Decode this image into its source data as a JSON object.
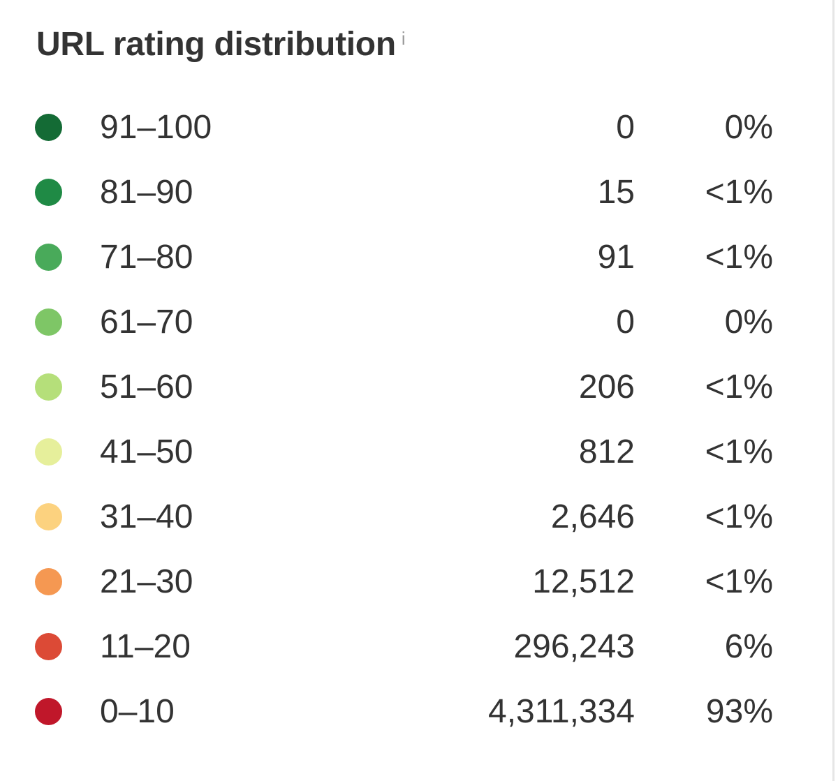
{
  "widget": {
    "title": "URL rating distribution",
    "info_icon": "i",
    "rows": [
      {
        "range": "91–100",
        "count": "0",
        "percent": "0%",
        "color": "#146b35"
      },
      {
        "range": "81–90",
        "count": "15",
        "percent": "<1%",
        "color": "#1f8a45"
      },
      {
        "range": "71–80",
        "count": "91",
        "percent": "<1%",
        "color": "#49aa5a"
      },
      {
        "range": "61–70",
        "count": "0",
        "percent": "0%",
        "color": "#7ec666"
      },
      {
        "range": "51–60",
        "count": "206",
        "percent": "<1%",
        "color": "#b5df7a"
      },
      {
        "range": "41–50",
        "count": "812",
        "percent": "<1%",
        "color": "#e6ef9b"
      },
      {
        "range": "31–40",
        "count": "2,646",
        "percent": "<1%",
        "color": "#fcd27f"
      },
      {
        "range": "21–30",
        "count": "12,512",
        "percent": "<1%",
        "color": "#f59852"
      },
      {
        "range": "11–20",
        "count": "296,243",
        "percent": "6%",
        "color": "#dc4a36"
      },
      {
        "range": "0–10",
        "count": "4,311,334",
        "percent": "93%",
        "color": "#c0172a"
      }
    ]
  }
}
